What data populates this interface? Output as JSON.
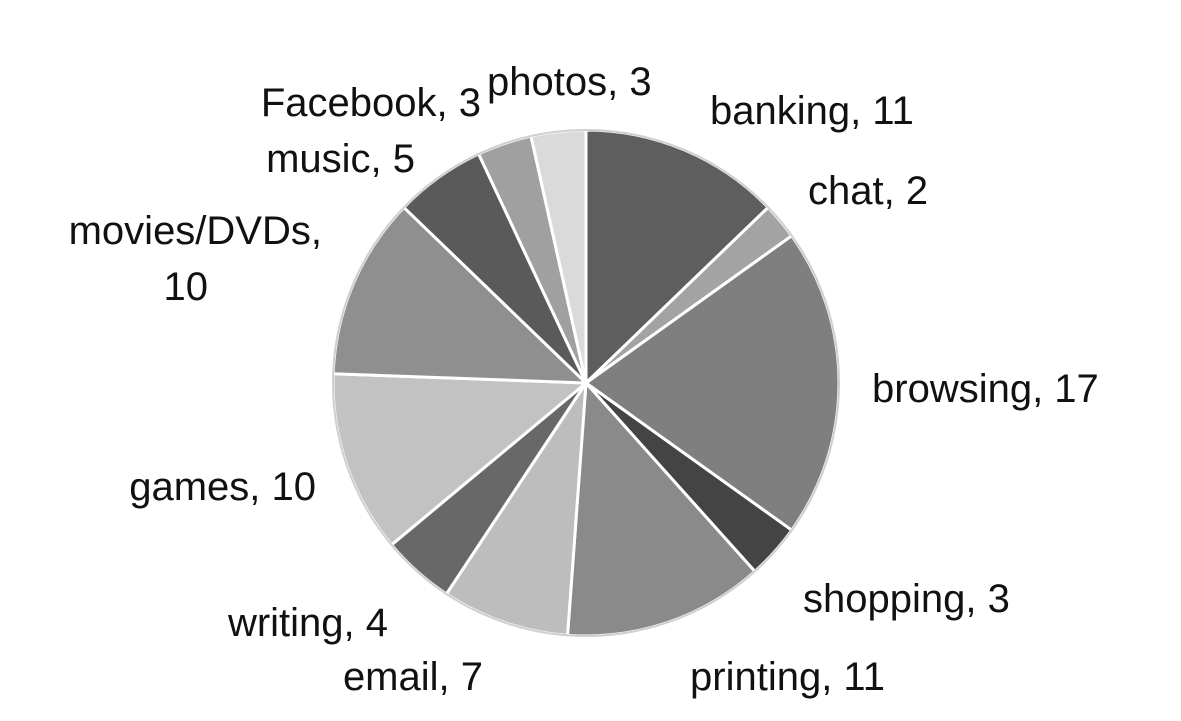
{
  "chart_data": {
    "type": "pie",
    "slices": [
      {
        "name": "banking",
        "value": 11,
        "label": "banking, 11",
        "color": "#5e5e5e"
      },
      {
        "name": "chat",
        "value": 2,
        "label": "chat, 2",
        "color": "#a3a3a3"
      },
      {
        "name": "browsing",
        "value": 17,
        "label": "browsing, 17",
        "color": "#7f7f7f"
      },
      {
        "name": "shopping",
        "value": 3,
        "label": "shopping, 3",
        "color": "#444444"
      },
      {
        "name": "printing",
        "value": 11,
        "label": "printing, 11",
        "color": "#8a8a8a"
      },
      {
        "name": "email",
        "value": 7,
        "label": "email, 7",
        "color": "#bdbdbd"
      },
      {
        "name": "writing",
        "value": 4,
        "label": "writing, 4",
        "color": "#686868"
      },
      {
        "name": "games",
        "value": 10,
        "label": "games, 10",
        "color": "#c2c2c2"
      },
      {
        "name": "movies/DVDs",
        "value": 10,
        "label": [
          "movies/DVDs,",
          "10"
        ],
        "color": "#8f8f8f"
      },
      {
        "name": "music",
        "value": 5,
        "label": "music, 5",
        "color": "#5a5a5a"
      },
      {
        "name": "Facebook",
        "value": 3,
        "label": "Facebook, 3",
        "color": "#a0a0a0"
      },
      {
        "name": "photos",
        "value": 3,
        "label": "photos, 3",
        "color": "#dadada"
      }
    ],
    "start_angle": "12 o'clock",
    "direction": "clockwise",
    "legend": "none"
  }
}
